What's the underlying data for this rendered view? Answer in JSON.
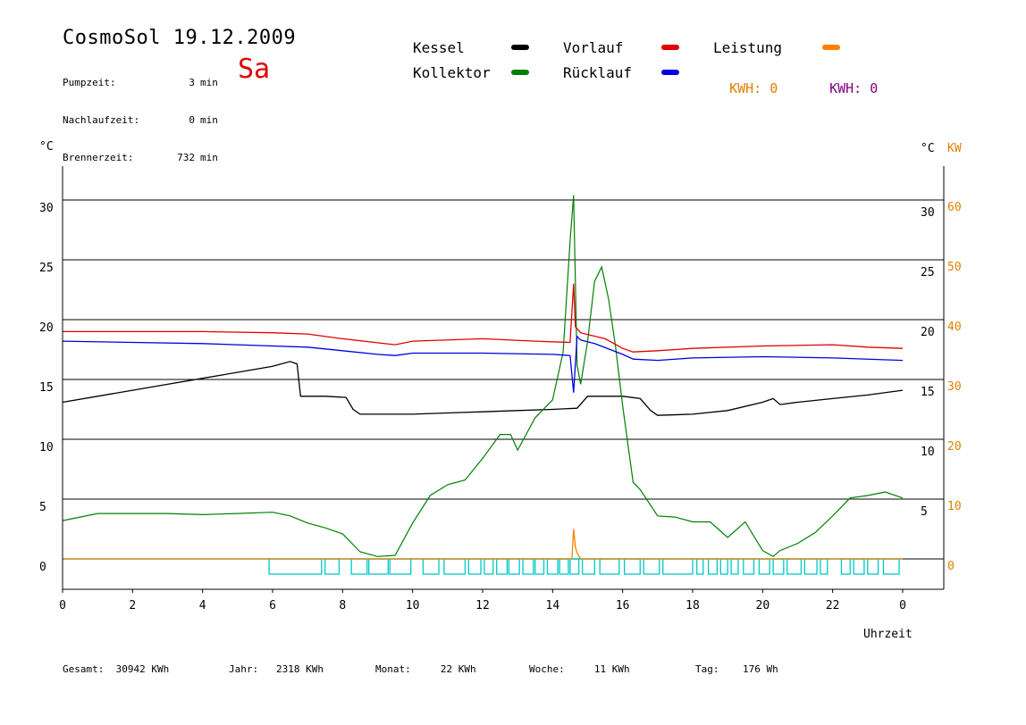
{
  "header": {
    "title": "CosmoSol 19.12.2009",
    "weekday": "Sa",
    "stats": [
      {
        "label": "Pumpzeit:",
        "value": "3",
        "unit": "min"
      },
      {
        "label": "Nachlaufzeit:",
        "value": "0",
        "unit": "min"
      },
      {
        "label": "Brennerzeit:",
        "value": "732",
        "unit": "min"
      }
    ]
  },
  "legend": {
    "items": [
      {
        "label": "Kessel",
        "color": "#000000"
      },
      {
        "label": "Kollektor",
        "color": "#008000"
      },
      {
        "label": "Vorlauf",
        "color": "#e00000"
      },
      {
        "label": "Rücklauf",
        "color": "#0000e0"
      },
      {
        "label": "Leistung",
        "color": "#ff8000"
      }
    ],
    "kwh": [
      {
        "label": "KWH:",
        "value": "0",
        "color": "#e08000"
      },
      {
        "label": "KWH:",
        "value": "0",
        "color": "#800080"
      }
    ]
  },
  "footer": {
    "items": [
      {
        "label": "Gesamt:",
        "value": "30942 KWh"
      },
      {
        "label": "Jahr:",
        "value": "2318 KWh"
      },
      {
        "label": "Monat:",
        "value": "22 KWh"
      },
      {
        "label": "Woche:",
        "value": "11 KWh"
      },
      {
        "label": "Tag:",
        "value": "176 Wh"
      }
    ]
  },
  "chart_data": {
    "type": "line",
    "title": "CosmoSol 19.12.2009",
    "left_unit": "°C",
    "right_units": [
      "°C",
      "KW"
    ],
    "xlabel": "Uhrzeit",
    "xlim": [
      0,
      24
    ],
    "x_ticks": [
      "0",
      "2",
      "4",
      "6",
      "8",
      "10",
      "12",
      "14",
      "16",
      "18",
      "20",
      "22",
      "0"
    ],
    "ylim": [
      -2.5,
      33
    ],
    "y_ticks_left": [
      0,
      5,
      10,
      15,
      20,
      25,
      30
    ],
    "y_ticks_right_celsius": [
      5,
      10,
      15,
      20,
      25,
      30
    ],
    "y_ticks_right_kw": [
      0,
      10,
      20,
      30,
      40,
      50,
      60
    ],
    "grid": "horizontal",
    "series": [
      {
        "name": "Kessel",
        "color": "#000000",
        "x": [
          0,
          1,
          2,
          3,
          4,
          5,
          6,
          6.5,
          6.7,
          6.8,
          7.5,
          8.1,
          8.3,
          8.5,
          9,
          10,
          11,
          12,
          13,
          14,
          14.7,
          15,
          16,
          16.5,
          16.8,
          17,
          18,
          19,
          20,
          20.3,
          20.5,
          21,
          22,
          23,
          24
        ],
        "y": [
          13.1,
          13.6,
          14.1,
          14.6,
          15.1,
          15.6,
          16.1,
          16.5,
          16.3,
          13.6,
          13.6,
          13.5,
          12.5,
          12.1,
          12.1,
          12.1,
          12.2,
          12.3,
          12.4,
          12.5,
          12.6,
          13.6,
          13.6,
          13.4,
          12.4,
          12.0,
          12.1,
          12.4,
          13.1,
          13.4,
          12.9,
          13.1,
          13.4,
          13.7,
          14.1
        ]
      },
      {
        "name": "Kollektor",
        "color": "#008000",
        "x": [
          0,
          1,
          2,
          3,
          4,
          5,
          6,
          6.5,
          7,
          7.5,
          8,
          8.5,
          9,
          9.5,
          10,
          10.5,
          11,
          11.5,
          12,
          12.5,
          12.8,
          13,
          13.5,
          14,
          14.3,
          14.5,
          14.6,
          14.7,
          14.8,
          15,
          15.2,
          15.4,
          15.6,
          15.8,
          16,
          16.3,
          16.5,
          17,
          17.5,
          18,
          18.5,
          19,
          19.5,
          20,
          20.3,
          20.5,
          21,
          21.5,
          22,
          22.5,
          23,
          23.5,
          24
        ],
        "y": [
          3.2,
          3.8,
          3.8,
          3.8,
          3.7,
          3.8,
          3.9,
          3.6,
          3.0,
          2.6,
          2.1,
          0.6,
          0.2,
          0.3,
          3.0,
          5.3,
          6.2,
          6.6,
          8.4,
          10.4,
          10.4,
          9.1,
          11.8,
          13.3,
          17.3,
          26.6,
          30.4,
          16.2,
          14.6,
          18.2,
          23.2,
          24.4,
          21.7,
          17.7,
          12.8,
          6.4,
          5.8,
          3.6,
          3.5,
          3.1,
          3.1,
          1.8,
          3.1,
          0.7,
          0.2,
          0.7,
          1.3,
          2.2,
          3.6,
          5.1,
          5.3,
          5.6,
          5.1
        ]
      },
      {
        "name": "Vorlauf",
        "color": "#e00000",
        "x": [
          0,
          2,
          4,
          6,
          7,
          8,
          9.5,
          10,
          12,
          13.5,
          14.5,
          14.6,
          14.65,
          14.8,
          15.5,
          16,
          16.3,
          17,
          18,
          20,
          22,
          23,
          24
        ],
        "y": [
          19.0,
          19.0,
          19.0,
          18.9,
          18.8,
          18.4,
          17.9,
          18.2,
          18.4,
          18.2,
          18.1,
          23.0,
          19.4,
          18.9,
          18.4,
          17.6,
          17.3,
          17.4,
          17.6,
          17.8,
          17.9,
          17.7,
          17.6
        ]
      },
      {
        "name": "Rücklauf",
        "color": "#0000e0",
        "x": [
          0,
          2,
          4,
          6,
          7,
          8,
          9,
          9.5,
          10,
          12,
          14,
          14.5,
          14.6,
          14.7,
          14.8,
          15.2,
          16,
          16.3,
          17,
          18,
          20,
          22,
          24
        ],
        "y": [
          18.2,
          18.1,
          18.0,
          17.8,
          17.7,
          17.4,
          17.1,
          17.0,
          17.2,
          17.2,
          17.1,
          17.0,
          13.9,
          18.6,
          18.3,
          18.0,
          17.1,
          16.7,
          16.6,
          16.8,
          16.9,
          16.8,
          16.6
        ]
      },
      {
        "name": "Leistung",
        "color": "#ff8000",
        "axis": "KW",
        "x": [
          0,
          14.55,
          14.6,
          14.65,
          14.7,
          14.75,
          14.8,
          24
        ],
        "y": [
          0,
          0,
          5,
          2,
          1,
          0.5,
          0,
          0
        ]
      }
    ],
    "pump_state": {
      "label": "Pumpe",
      "color": "#00c8c8",
      "on_intervals": [
        [
          5.9,
          7.4
        ],
        [
          7.5,
          7.9
        ],
        [
          8.25,
          8.7
        ],
        [
          8.75,
          9.3
        ],
        [
          9.35,
          9.95
        ],
        [
          10.3,
          10.75
        ],
        [
          10.9,
          11.5
        ],
        [
          11.6,
          11.95
        ],
        [
          12.05,
          12.3
        ],
        [
          12.4,
          12.7
        ],
        [
          12.75,
          13.05
        ],
        [
          13.15,
          13.45
        ],
        [
          13.5,
          13.75
        ],
        [
          13.85,
          14.15
        ],
        [
          14.2,
          14.45
        ],
        [
          14.5,
          14.75
        ],
        [
          14.85,
          15.2
        ],
        [
          15.35,
          15.9
        ],
        [
          16.05,
          16.5
        ],
        [
          16.6,
          17.05
        ],
        [
          17.15,
          18.0
        ],
        [
          18.12,
          18.3
        ],
        [
          18.45,
          18.7
        ],
        [
          18.8,
          19.0
        ],
        [
          19.1,
          19.3
        ],
        [
          19.45,
          19.75
        ],
        [
          19.9,
          20.2
        ],
        [
          20.3,
          20.6
        ],
        [
          20.7,
          21.1
        ],
        [
          21.2,
          21.55
        ],
        [
          21.65,
          21.85
        ],
        [
          22.25,
          22.5
        ],
        [
          22.6,
          22.9
        ],
        [
          23.0,
          23.3
        ],
        [
          23.45,
          23.9
        ]
      ]
    }
  }
}
